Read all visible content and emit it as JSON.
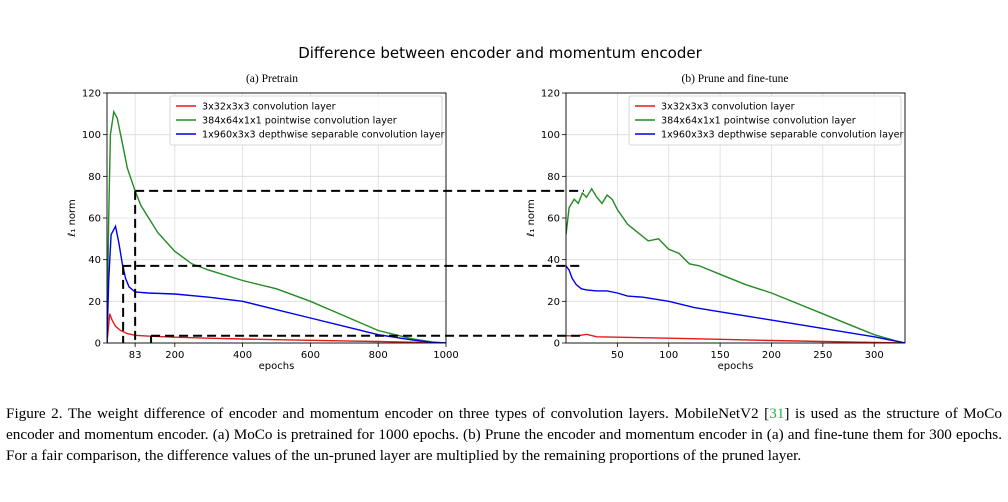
{
  "figure": {
    "suptitle": "Difference between encoder and momentum encoder"
  },
  "chart_data": [
    {
      "type": "line",
      "title": "(a) Pretrain",
      "xlabel": "epochs",
      "ylabel": "ℓ₁ norm",
      "xlim": [
        0,
        1000
      ],
      "ylim": [
        0,
        120
      ],
      "xticks": [
        "83",
        "200",
        "400",
        "600",
        "800",
        "1000"
      ],
      "yticks": [
        "0",
        "20",
        "40",
        "60",
        "80",
        "100",
        "120"
      ],
      "grid": true,
      "legend": "top-right",
      "series": [
        {
          "name": "3x32x3x3 convolution layer",
          "color": "#e31a1c",
          "x": [
            0,
            8,
            15,
            25,
            40,
            60,
            83,
            120,
            200,
            300,
            400,
            500,
            600,
            700,
            800,
            900,
            960,
            1000
          ],
          "y": [
            0,
            14,
            11,
            8,
            6,
            4.5,
            3.7,
            3.3,
            2.8,
            2.3,
            1.9,
            1.6,
            1.3,
            1.0,
            0.7,
            0.4,
            0.2,
            0
          ]
        },
        {
          "name": "384x64x1x1 pointwise convolution layer",
          "color": "#228b22",
          "x": [
            0,
            5,
            10,
            20,
            30,
            40,
            50,
            60,
            83,
            100,
            150,
            200,
            250,
            300,
            400,
            500,
            600,
            700,
            800,
            900,
            960,
            1000
          ],
          "y": [
            0,
            60,
            100,
            111,
            108,
            100,
            92,
            84,
            73,
            66,
            53,
            44,
            38,
            35,
            30,
            26,
            20,
            13,
            6,
            2,
            0.5,
            0
          ]
        },
        {
          "name": "1x960x3x3 depthwise separable convolution layer",
          "color": "#0000ee",
          "x": [
            0,
            5,
            12,
            25,
            35,
            45,
            55,
            65,
            83,
            120,
            200,
            300,
            400,
            500,
            600,
            700,
            800,
            900,
            960,
            1000
          ],
          "y": [
            0,
            30,
            52,
            56,
            48,
            38,
            31,
            27,
            24.5,
            24,
            23.5,
            22,
            20,
            16,
            12,
            8,
            4,
            1.5,
            0.3,
            0
          ]
        }
      ]
    },
    {
      "type": "line",
      "title": "(b) Prune and fine-tune",
      "xlabel": "epochs",
      "ylabel": "ℓ₁ norm",
      "xlim": [
        0,
        330
      ],
      "ylim": [
        0,
        120
      ],
      "xticks": [
        "50",
        "100",
        "150",
        "200",
        "250",
        "300"
      ],
      "yticks": [
        "0",
        "20",
        "40",
        "60",
        "80",
        "100",
        "120"
      ],
      "grid": true,
      "legend": "top-right",
      "series": [
        {
          "name": "3x32x3x3 convolution layer",
          "color": "#e31a1c",
          "x": [
            0,
            10,
            20,
            30,
            50,
            80,
            100,
            150,
            200,
            250,
            300,
            330
          ],
          "y": [
            3.5,
            3.3,
            4.2,
            3.0,
            2.8,
            2.5,
            2.3,
            1.8,
            1.2,
            0.7,
            0.3,
            0
          ]
        },
        {
          "name": "384x64x1x1 pointwise convolution layer",
          "color": "#228b22",
          "x": [
            0,
            3,
            8,
            12,
            16,
            20,
            25,
            30,
            35,
            40,
            45,
            50,
            60,
            70,
            80,
            90,
            100,
            110,
            120,
            130,
            150,
            175,
            200,
            225,
            250,
            275,
            300,
            320,
            330
          ],
          "y": [
            52,
            65,
            69,
            67,
            72,
            70,
            74,
            70,
            67,
            71,
            69,
            64,
            57,
            53,
            49,
            50,
            45,
            43,
            38,
            37,
            33,
            28,
            24,
            19,
            14,
            9,
            4,
            1.2,
            0
          ]
        },
        {
          "name": "1x960x3x3 depthwise separable convolution layer",
          "color": "#0000ee",
          "x": [
            0,
            3,
            6,
            10,
            15,
            20,
            30,
            40,
            50,
            60,
            75,
            100,
            125,
            150,
            175,
            200,
            250,
            300,
            330
          ],
          "y": [
            37,
            35,
            31,
            28,
            26,
            25.5,
            25,
            25,
            24,
            22.5,
            22,
            20,
            17,
            15,
            13,
            11,
            7,
            3,
            0
          ]
        }
      ]
    }
  ],
  "caption": {
    "part1": "Figure 2.  The weight difference of encoder and momentum encoder on three types of convolution layers.  MobileNetV2 [",
    "ref": "31",
    "part2": "] is used as the structure of MoCo encoder and momentum encoder.  (a) MoCo is pretrained for 1000 epochs.  (b) Prune the encoder and momentum encoder in (a) and fine-tune them for 300 epochs. For a fair comparison, the difference values of the un-pruned layer are multiplied by the remaining proportions of the pruned layer."
  }
}
